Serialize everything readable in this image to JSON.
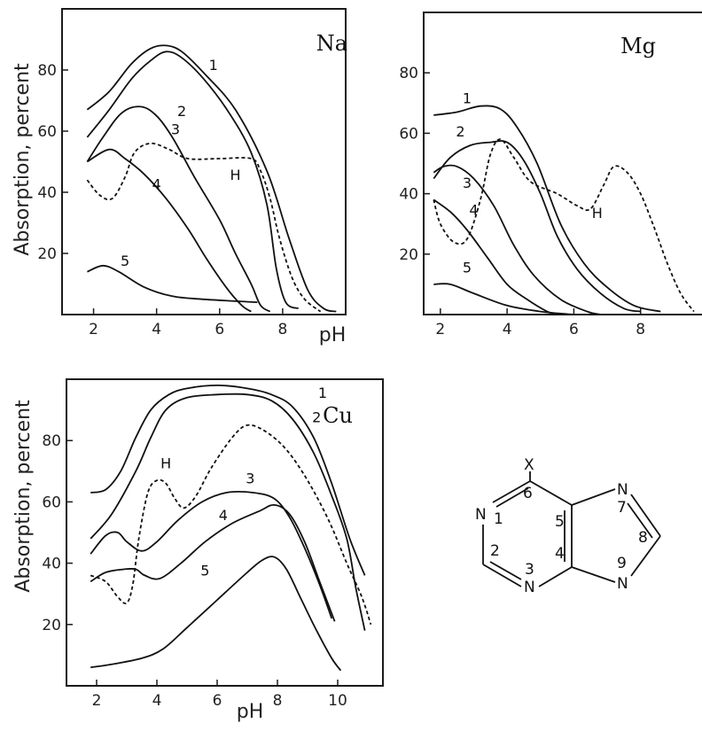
{
  "chart_data": [
    {
      "type": "line",
      "title": "Na",
      "xlabel": "pH",
      "ylabel": "Absorption, percent",
      "xlim": [
        1,
        10
      ],
      "ylim": [
        0,
        100
      ],
      "xticks": [
        2,
        4,
        6,
        8
      ],
      "yticks": [
        20,
        40,
        60,
        80
      ],
      "series": [
        {
          "name": "1",
          "dashed": false,
          "label_at": [
            5.8,
            80
          ],
          "points": [
            [
              1.8,
              67
            ],
            [
              2.5,
              73
            ],
            [
              3.2,
              82
            ],
            [
              3.8,
              87
            ],
            [
              4.3,
              88
            ],
            [
              4.8,
              86
            ],
            [
              5.5,
              79
            ],
            [
              6.5,
              67
            ],
            [
              7.5,
              47
            ],
            [
              8.2,
              25
            ],
            [
              8.8,
              8
            ],
            [
              9.3,
              2
            ],
            [
              9.7,
              1
            ]
          ]
        },
        {
          "name": "2",
          "dashed": false,
          "label_at": [
            4.8,
            65
          ],
          "points": [
            [
              1.8,
              58
            ],
            [
              2.5,
              67
            ],
            [
              3.2,
              77
            ],
            [
              3.8,
              83
            ],
            [
              4.3,
              86
            ],
            [
              4.8,
              84
            ],
            [
              5.5,
              77
            ],
            [
              6.3,
              66
            ],
            [
              7.0,
              53
            ],
            [
              7.5,
              36
            ],
            [
              7.8,
              15
            ],
            [
              8.1,
              4
            ],
            [
              8.5,
              2
            ]
          ]
        },
        {
          "name": "3",
          "dashed": false,
          "label_at": [
            4.6,
            59
          ],
          "points": [
            [
              1.8,
              50
            ],
            [
              2.3,
              58
            ],
            [
              2.9,
              66
            ],
            [
              3.5,
              68
            ],
            [
              4.0,
              65
            ],
            [
              4.5,
              58
            ],
            [
              5.2,
              45
            ],
            [
              6.0,
              31
            ],
            [
              6.5,
              20
            ],
            [
              7.0,
              10
            ],
            [
              7.3,
              3
            ],
            [
              7.6,
              1
            ]
          ]
        },
        {
          "name": "4",
          "dashed": false,
          "label_at": [
            4.0,
            41
          ],
          "points": [
            [
              1.8,
              50
            ],
            [
              2.5,
              54
            ],
            [
              3.0,
              51
            ],
            [
              3.6,
              46
            ],
            [
              4.3,
              38
            ],
            [
              5.0,
              28
            ],
            [
              5.6,
              18
            ],
            [
              6.2,
              9
            ],
            [
              6.7,
              3
            ],
            [
              7.0,
              1
            ]
          ]
        },
        {
          "name": "5",
          "dashed": false,
          "label_at": [
            3.0,
            16
          ],
          "points": [
            [
              1.8,
              14
            ],
            [
              2.3,
              16
            ],
            [
              2.8,
              14
            ],
            [
              3.6,
              9
            ],
            [
              4.5,
              6
            ],
            [
              5.5,
              5
            ],
            [
              7.2,
              4
            ]
          ]
        },
        {
          "name": "H",
          "dashed": true,
          "label_at": [
            6.5,
            44
          ],
          "points": [
            [
              1.8,
              44
            ],
            [
              2.2,
              39
            ],
            [
              2.6,
              38
            ],
            [
              3.0,
              45
            ],
            [
              3.3,
              53
            ],
            [
              3.8,
              56
            ],
            [
              4.4,
              54
            ],
            [
              5.0,
              51
            ],
            [
              6.0,
              51
            ],
            [
              7.0,
              51
            ],
            [
              7.3,
              47
            ],
            [
              7.6,
              38
            ],
            [
              7.9,
              25
            ],
            [
              8.3,
              12
            ],
            [
              8.7,
              5
            ],
            [
              9.2,
              1
            ]
          ]
        }
      ]
    },
    {
      "type": "line",
      "title": "Mg",
      "xlabel": "",
      "ylabel": "",
      "xlim": [
        1.5,
        10
      ],
      "ylim": [
        0,
        100
      ],
      "xticks": [
        2,
        4,
        6,
        8
      ],
      "yticks": [
        20,
        40,
        60,
        80
      ],
      "series": [
        {
          "name": "1",
          "dashed": false,
          "label_at": [
            2.8,
            70
          ],
          "points": [
            [
              1.8,
              66
            ],
            [
              2.5,
              67
            ],
            [
              3.2,
              69
            ],
            [
              3.8,
              68
            ],
            [
              4.3,
              62
            ],
            [
              4.9,
              50
            ],
            [
              5.6,
              30
            ],
            [
              6.3,
              17
            ],
            [
              7.0,
              9
            ],
            [
              7.8,
              3
            ],
            [
              8.6,
              1
            ]
          ]
        },
        {
          "name": "2",
          "dashed": false,
          "label_at": [
            2.6,
            59
          ],
          "points": [
            [
              1.8,
              45
            ],
            [
              2.3,
              52
            ],
            [
              2.9,
              56
            ],
            [
              3.5,
              57
            ],
            [
              4.0,
              57
            ],
            [
              4.5,
              51
            ],
            [
              5.0,
              40
            ],
            [
              5.5,
              26
            ],
            [
              6.1,
              15
            ],
            [
              6.8,
              7
            ],
            [
              7.5,
              2
            ],
            [
              8.0,
              1
            ]
          ]
        },
        {
          "name": "3",
          "dashed": false,
          "label_at": [
            2.8,
            42
          ],
          "points": [
            [
              1.8,
              47
            ],
            [
              2.1,
              49
            ],
            [
              2.5,
              49
            ],
            [
              3.0,
              45
            ],
            [
              3.6,
              36
            ],
            [
              4.2,
              23
            ],
            [
              4.8,
              13
            ],
            [
              5.6,
              5
            ],
            [
              6.4,
              1
            ],
            [
              6.8,
              0
            ]
          ]
        },
        {
          "name": "4",
          "dashed": false,
          "label_at": [
            3.0,
            33
          ],
          "points": [
            [
              1.8,
              38
            ],
            [
              2.3,
              34
            ],
            [
              2.8,
              28
            ],
            [
              3.4,
              19
            ],
            [
              4.0,
              10
            ],
            [
              4.6,
              5
            ],
            [
              5.2,
              1
            ],
            [
              5.5,
              0
            ]
          ]
        },
        {
          "name": "5",
          "dashed": false,
          "label_at": [
            2.8,
            14
          ],
          "points": [
            [
              1.8,
              10
            ],
            [
              2.3,
              10
            ],
            [
              3.0,
              7
            ],
            [
              4.0,
              3
            ],
            [
              5.0,
              1
            ],
            [
              6.0,
              0
            ]
          ]
        },
        {
          "name": "H",
          "dashed": true,
          "label_at": [
            6.7,
            32
          ],
          "points": [
            [
              1.8,
              38
            ],
            [
              2.0,
              30
            ],
            [
              2.4,
              24
            ],
            [
              2.8,
              25
            ],
            [
              3.2,
              38
            ],
            [
              3.5,
              53
            ],
            [
              3.8,
              58
            ],
            [
              4.2,
              52
            ],
            [
              4.7,
              44
            ],
            [
              5.5,
              40
            ],
            [
              6.1,
              36
            ],
            [
              6.5,
              35
            ],
            [
              6.9,
              43
            ],
            [
              7.2,
              49
            ],
            [
              7.6,
              47
            ],
            [
              8.0,
              40
            ],
            [
              8.4,
              29
            ],
            [
              8.8,
              17
            ],
            [
              9.2,
              7
            ],
            [
              9.6,
              1
            ]
          ]
        }
      ]
    },
    {
      "type": "line",
      "title": "Cu",
      "xlabel": "pH",
      "ylabel": "Absorption, percent",
      "xlim": [
        1,
        11.5
      ],
      "ylim": [
        0,
        100
      ],
      "xticks": [
        2,
        4,
        6,
        8,
        10
      ],
      "yticks": [
        20,
        40,
        60,
        80
      ],
      "series": [
        {
          "name": "1",
          "dashed": false,
          "label_at": [
            9.5,
            94
          ],
          "points": [
            [
              1.8,
              63
            ],
            [
              2.3,
              64
            ],
            [
              2.8,
              70
            ],
            [
              3.3,
              81
            ],
            [
              3.8,
              90
            ],
            [
              4.4,
              95
            ],
            [
              5.0,
              97
            ],
            [
              6.0,
              98
            ],
            [
              7.0,
              97
            ],
            [
              7.8,
              95
            ],
            [
              8.5,
              91
            ],
            [
              9.2,
              81
            ],
            [
              9.8,
              66
            ],
            [
              10.4,
              48
            ],
            [
              10.9,
              36
            ]
          ]
        },
        {
          "name": "2",
          "dashed": false,
          "label_at": [
            9.3,
            86
          ],
          "points": [
            [
              1.8,
              48
            ],
            [
              2.5,
              56
            ],
            [
              3.3,
              70
            ],
            [
              3.8,
              81
            ],
            [
              4.3,
              90
            ],
            [
              5.0,
              94
            ],
            [
              6.0,
              95
            ],
            [
              7.0,
              95
            ],
            [
              7.8,
              93
            ],
            [
              8.5,
              87
            ],
            [
              9.2,
              76
            ],
            [
              9.8,
              62
            ],
            [
              10.3,
              48
            ],
            [
              10.6,
              32
            ],
            [
              10.9,
              18
            ]
          ]
        },
        {
          "name": "3",
          "dashed": false,
          "label_at": [
            7.1,
            66
          ],
          "points": [
            [
              1.8,
              43
            ],
            [
              2.3,
              49
            ],
            [
              2.7,
              50
            ],
            [
              3.0,
              47
            ],
            [
              3.5,
              44
            ],
            [
              4.0,
              47
            ],
            [
              4.7,
              54
            ],
            [
              5.5,
              60
            ],
            [
              6.3,
              63
            ],
            [
              7.2,
              63
            ],
            [
              7.9,
              61
            ],
            [
              8.4,
              55
            ],
            [
              8.9,
              45
            ],
            [
              9.4,
              33
            ],
            [
              9.8,
              22
            ]
          ]
        },
        {
          "name": "4",
          "dashed": false,
          "label_at": [
            6.2,
            54
          ],
          "points": [
            [
              1.8,
              34
            ],
            [
              2.3,
              37
            ],
            [
              2.9,
              38
            ],
            [
              3.3,
              38
            ],
            [
              3.6,
              36
            ],
            [
              4.1,
              35
            ],
            [
              4.8,
              40
            ],
            [
              5.6,
              47
            ],
            [
              6.5,
              53
            ],
            [
              7.4,
              57
            ],
            [
              7.9,
              59
            ],
            [
              8.4,
              56
            ],
            [
              8.9,
              47
            ],
            [
              9.4,
              34
            ],
            [
              9.9,
              21
            ]
          ]
        },
        {
          "name": "5",
          "dashed": false,
          "label_at": [
            5.6,
            36
          ],
          "points": [
            [
              1.8,
              6
            ],
            [
              2.5,
              7
            ],
            [
              3.5,
              9
            ],
            [
              4.2,
              12
            ],
            [
              5.0,
              19
            ],
            [
              6.0,
              28
            ],
            [
              7.0,
              37
            ],
            [
              7.5,
              41
            ],
            [
              7.9,
              42
            ],
            [
              8.3,
              38
            ],
            [
              8.8,
              28
            ],
            [
              9.3,
              18
            ],
            [
              9.8,
              9
            ],
            [
              10.1,
              5
            ]
          ]
        },
        {
          "name": "H",
          "dashed": true,
          "label_at": [
            4.3,
            71
          ],
          "points": [
            [
              1.8,
              36
            ],
            [
              2.3,
              34
            ],
            [
              2.7,
              29
            ],
            [
              3.0,
              27
            ],
            [
              3.2,
              33
            ],
            [
              3.4,
              48
            ],
            [
              3.7,
              63
            ],
            [
              4.0,
              67
            ],
            [
              4.3,
              66
            ],
            [
              4.6,
              61
            ],
            [
              4.9,
              58
            ],
            [
              5.3,
              62
            ],
            [
              5.8,
              71
            ],
            [
              6.5,
              81
            ],
            [
              7.0,
              85
            ],
            [
              7.6,
              83
            ],
            [
              8.3,
              77
            ],
            [
              9.0,
              67
            ],
            [
              9.7,
              54
            ],
            [
              10.3,
              40
            ],
            [
              10.8,
              29
            ],
            [
              11.1,
              20
            ]
          ]
        }
      ]
    }
  ],
  "structure": {
    "substituent": "X",
    "atoms": [
      "N",
      "1",
      "2",
      "N",
      "3",
      "4",
      "5",
      "6",
      "N",
      "7",
      "8",
      "9",
      "N"
    ]
  }
}
